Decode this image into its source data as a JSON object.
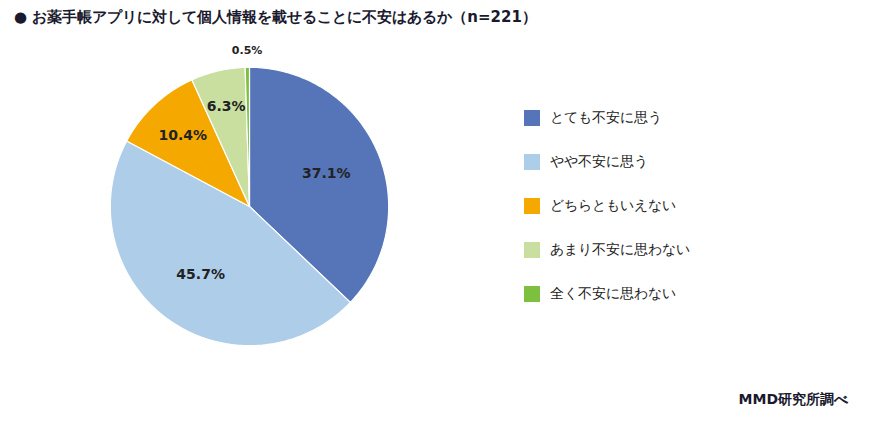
{
  "chart_data": {
    "type": "pie",
    "title": "● お薬手帳アプリに対して個人情報を載せることに不安はあるか（n=221）",
    "categories": [
      "とても不安に思う",
      "やや不安に思う",
      "どちらともいえない",
      "あまり不安に思わない",
      "全く不安に思わない"
    ],
    "values": [
      37.1,
      45.7,
      10.4,
      6.3,
      0.5
    ],
    "value_labels": [
      "37.1%",
      "45.7%",
      "10.4%",
      "6.3%",
      "0.5%"
    ],
    "colors": [
      "#5575B8",
      "#AECDE8",
      "#F5A800",
      "#C8DFA0",
      "#7DC040"
    ],
    "data_labels": true,
    "legend": "right",
    "annotations": [
      "MMD研究所調べ"
    ]
  }
}
